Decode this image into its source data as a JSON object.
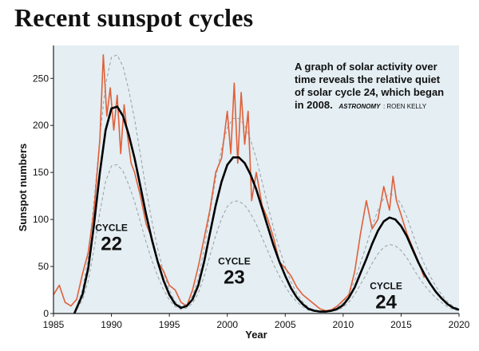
{
  "header": {
    "title": "Recent sunspot cycles"
  },
  "caption": {
    "lines": [
      "A graph of solar activity over",
      "time reveals the relative quiet",
      "of solar cycle 24, which began"
    ],
    "last_line": "in 2008.",
    "credit_italic": "ASTRONOMY",
    "credit_rest": ": ROEN KELLY"
  },
  "colors": {
    "background_panel": "#e4eef3",
    "observed": "#e0603a",
    "fit": "#000000",
    "envelope": "#9aa0a4"
  },
  "cycle_labels": [
    {
      "word": "CYCLE",
      "number": "22",
      "year": 1990.0,
      "value": 88
    },
    {
      "word": "CYCLE",
      "number": "23",
      "year": 2000.6,
      "value": 52
    },
    {
      "word": "CYCLE",
      "number": "24",
      "year": 2013.7,
      "value": 26
    }
  ],
  "chart_data": {
    "type": "line",
    "xlabel": "Year",
    "ylabel": "Sunspot numbers",
    "xlim": [
      1985,
      2020
    ],
    "ylim": [
      0,
      285
    ],
    "x_ticks": [
      1985,
      1990,
      1995,
      2000,
      2005,
      2010,
      2015,
      2020
    ],
    "y_ticks": [
      0,
      50,
      100,
      150,
      200,
      250
    ],
    "grid": false,
    "legend": "none",
    "series": [
      {
        "kind": "observed",
        "x": [
          1985.0,
          1985.5,
          1986.0,
          1986.5,
          1987.0,
          1987.5,
          1988.0,
          1988.5,
          1989.0,
          1989.3,
          1989.6,
          1989.9,
          1990.2,
          1990.5,
          1990.8,
          1991.1,
          1991.4,
          1991.7,
          1992.0,
          1992.5,
          1993.0,
          1993.5,
          1994.0,
          1994.5,
          1995.0,
          1995.5,
          1996.0,
          1996.5,
          1997.0,
          1997.5,
          1998.0,
          1998.5,
          1999.0,
          1999.5,
          2000.0,
          2000.3,
          2000.6,
          2000.9,
          2001.2,
          2001.5,
          2001.8,
          2002.1,
          2002.5,
          2003.0,
          2003.5,
          2004.0,
          2004.5,
          2005.0,
          2005.5,
          2006.0,
          2006.5,
          2007.0,
          2007.5,
          2008.0,
          2008.5,
          2009.0,
          2009.5,
          2010.0,
          2010.5,
          2011.0,
          2011.5,
          2012.0,
          2012.5,
          2013.0,
          2013.5,
          2014.0,
          2014.3,
          2014.6,
          2015.0,
          2015.5,
          2016.0,
          2016.5,
          2017.0
        ],
        "values": [
          20,
          30,
          12,
          8,
          15,
          42,
          65,
          110,
          185,
          275,
          210,
          240,
          195,
          232,
          170,
          222,
          188,
          160,
          150,
          125,
          95,
          80,
          55,
          45,
          30,
          25,
          12,
          8,
          25,
          50,
          80,
          110,
          150,
          165,
          215,
          170,
          245,
          160,
          235,
          180,
          215,
          120,
          150,
          115,
          100,
          80,
          55,
          48,
          40,
          28,
          20,
          15,
          10,
          5,
          3,
          4,
          8,
          14,
          20,
          45,
          85,
          120,
          90,
          100,
          135,
          110,
          146,
          120,
          105,
          85,
          70,
          55,
          38
        ]
      },
      {
        "kind": "fit",
        "x": [
          1986.8,
          1987.5,
          1988.0,
          1988.5,
          1989.0,
          1989.5,
          1990.0,
          1990.5,
          1991.0,
          1991.5,
          1992.0,
          1992.5,
          1993.0,
          1993.5,
          1994.0,
          1994.5,
          1995.0,
          1995.5,
          1996.0,
          1996.5,
          1997.0,
          1997.5,
          1998.0,
          1998.5,
          1999.0,
          1999.5,
          2000.0,
          2000.5,
          2001.0,
          2001.5,
          2002.0,
          2002.5,
          2003.0,
          2003.5,
          2004.0,
          2004.5,
          2005.0,
          2005.5,
          2006.0,
          2006.5,
          2007.0,
          2007.5,
          2008.0,
          2008.5,
          2009.0,
          2009.5,
          2010.0,
          2010.5,
          2011.0,
          2011.5,
          2012.0,
          2012.5,
          2013.0,
          2013.5,
          2014.0,
          2014.5,
          2015.0,
          2015.5,
          2016.0,
          2016.5,
          2017.0,
          2017.5,
          2018.0,
          2018.5,
          2019.0,
          2019.5,
          2020.0
        ],
        "values": [
          0,
          20,
          48,
          95,
          150,
          195,
          218,
          220,
          210,
          190,
          165,
          135,
          105,
          78,
          55,
          35,
          20,
          10,
          6,
          8,
          15,
          30,
          55,
          85,
          115,
          140,
          158,
          166,
          166,
          160,
          148,
          132,
          112,
          92,
          72,
          55,
          40,
          27,
          17,
          10,
          5,
          3,
          2,
          2,
          3,
          5,
          9,
          17,
          28,
          43,
          58,
          74,
          88,
          98,
          102,
          100,
          93,
          82,
          68,
          54,
          42,
          32,
          23,
          16,
          10,
          6,
          4
        ]
      }
    ]
  }
}
